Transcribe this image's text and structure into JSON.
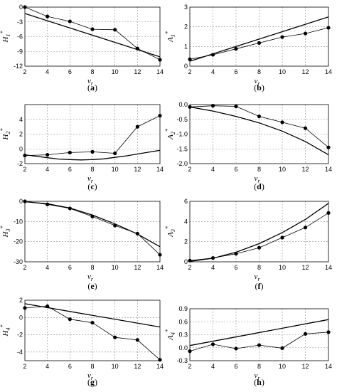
{
  "figure": {
    "panels": [
      {
        "id": "a",
        "letter": "a",
        "ylabel_sym": "H",
        "ylabel_sup": "*",
        "ylabel_sub": "1",
        "xlabel_sym": "v",
        "xlabel_sub": "r"
      },
      {
        "id": "b",
        "letter": "b",
        "ylabel_sym": "A",
        "ylabel_sup": "*",
        "ylabel_sub": "1",
        "xlabel_sym": "v",
        "xlabel_sub": "r"
      },
      {
        "id": "c",
        "letter": "c",
        "ylabel_sym": "H",
        "ylabel_sup": "*",
        "ylabel_sub": "2",
        "xlabel_sym": "v",
        "xlabel_sub": "r"
      },
      {
        "id": "d",
        "letter": "d",
        "ylabel_sym": "A",
        "ylabel_sup": "*",
        "ylabel_sub": "2",
        "xlabel_sym": "v",
        "xlabel_sub": "r"
      },
      {
        "id": "e",
        "letter": "e",
        "ylabel_sym": "H",
        "ylabel_sup": "*",
        "ylabel_sub": "3",
        "xlabel_sym": "v",
        "xlabel_sub": "r"
      },
      {
        "id": "f",
        "letter": "f",
        "ylabel_sym": "A",
        "ylabel_sup": "*",
        "ylabel_sub": "3",
        "xlabel_sym": "v",
        "xlabel_sub": "r"
      },
      {
        "id": "g",
        "letter": "g",
        "ylabel_sym": "H",
        "ylabel_sup": "*",
        "ylabel_sub": "4",
        "xlabel_sym": "v",
        "xlabel_sub": "r"
      },
      {
        "id": "h",
        "letter": "h",
        "ylabel_sym": "A",
        "ylabel_sup": "*",
        "ylabel_sub": "4",
        "xlabel_sym": "v",
        "xlabel_sub": "r"
      }
    ]
  },
  "chart_data": [
    {
      "id": "a",
      "type": "line",
      "xlim": [
        2,
        14
      ],
      "xticks": [
        2,
        4,
        6,
        8,
        10,
        12,
        14
      ],
      "ylim": [
        -12,
        0
      ],
      "yticks": [
        0,
        -3,
        -6,
        -9,
        -12
      ],
      "grid": true,
      "series": [
        {
          "kind": "measured",
          "x": [
            2,
            4,
            6,
            8,
            10,
            12,
            14
          ],
          "y": [
            0,
            -1.9,
            -2.9,
            -4.5,
            -4.6,
            -8.4,
            -10.7
          ]
        },
        {
          "kind": "fitted",
          "x": [
            2,
            14
          ],
          "y": [
            -1.3,
            -10.1
          ]
        }
      ]
    },
    {
      "id": "b",
      "type": "line",
      "xlim": [
        2,
        14
      ],
      "xticks": [
        2,
        4,
        6,
        8,
        10,
        12,
        14
      ],
      "ylim": [
        0,
        3
      ],
      "yticks": [
        0,
        1,
        2,
        3
      ],
      "grid": true,
      "series": [
        {
          "kind": "measured",
          "x": [
            2,
            4,
            6,
            8,
            10,
            12,
            14
          ],
          "y": [
            0.35,
            0.58,
            0.88,
            1.18,
            1.48,
            1.66,
            1.95
          ]
        },
        {
          "kind": "fitted",
          "x": [
            2,
            14
          ],
          "y": [
            0.25,
            2.5
          ]
        }
      ]
    },
    {
      "id": "c",
      "type": "line",
      "xlim": [
        2,
        14
      ],
      "xticks": [
        2,
        4,
        6,
        8,
        10,
        12,
        14
      ],
      "ylim": [
        -2,
        6
      ],
      "yticks": [
        -2,
        0,
        2,
        4
      ],
      "grid": true,
      "series": [
        {
          "kind": "measured",
          "x": [
            2,
            4,
            6,
            8,
            10,
            12,
            14
          ],
          "y": [
            -0.9,
            -0.8,
            -0.5,
            -0.4,
            -0.6,
            3.0,
            4.5
          ]
        },
        {
          "kind": "fitted",
          "x": [
            2,
            3,
            4,
            5,
            6,
            7,
            8,
            9,
            10,
            11,
            12,
            13,
            14
          ],
          "y": [
            -0.8,
            -1.0,
            -1.2,
            -1.38,
            -1.45,
            -1.5,
            -1.45,
            -1.35,
            -1.15,
            -0.95,
            -0.7,
            -0.45,
            -0.2
          ]
        }
      ]
    },
    {
      "id": "d",
      "type": "line",
      "xlim": [
        2,
        14
      ],
      "xticks": [
        2,
        4,
        6,
        8,
        10,
        12,
        14
      ],
      "ylim": [
        -2,
        0
      ],
      "yticks": [
        0,
        -0.5,
        -1.0,
        -1.5,
        -2.0
      ],
      "ytick_labels": [
        "0.0",
        "-0.5",
        "-1.0",
        "-1.5",
        "-2.0"
      ],
      "grid": true,
      "series": [
        {
          "kind": "measured",
          "x": [
            2,
            4,
            6,
            8,
            10,
            12,
            14
          ],
          "y": [
            -0.08,
            -0.04,
            -0.06,
            -0.4,
            -0.6,
            -0.8,
            -1.45
          ]
        },
        {
          "kind": "fitted",
          "x": [
            2,
            4,
            6,
            8,
            10,
            12,
            14
          ],
          "y": [
            -0.08,
            -0.22,
            -0.4,
            -0.62,
            -0.9,
            -1.25,
            -1.7
          ]
        }
      ]
    },
    {
      "id": "e",
      "type": "line",
      "xlim": [
        2,
        14
      ],
      "xticks": [
        2,
        4,
        6,
        8,
        10,
        12,
        14
      ],
      "ylim": [
        -30,
        0
      ],
      "yticks": [
        0,
        -10,
        -20,
        -30
      ],
      "grid": true,
      "series": [
        {
          "kind": "measured",
          "x": [
            2,
            4,
            6,
            8,
            10,
            12,
            14
          ],
          "y": [
            0,
            -1.5,
            -3.5,
            -7.5,
            -12,
            -16,
            -26.5
          ]
        },
        {
          "kind": "fitted",
          "x": [
            2,
            4,
            6,
            8,
            10,
            12,
            14
          ],
          "y": [
            -0.2,
            -1.2,
            -3.3,
            -6.8,
            -11.2,
            -16.2,
            -22.5
          ]
        }
      ]
    },
    {
      "id": "f",
      "type": "line",
      "xlim": [
        2,
        14
      ],
      "xticks": [
        2,
        4,
        6,
        8,
        10,
        12,
        14
      ],
      "ylim": [
        0,
        6
      ],
      "yticks": [
        0,
        2,
        4,
        6
      ],
      "grid": true,
      "series": [
        {
          "kind": "measured",
          "x": [
            2,
            4,
            6,
            8,
            10,
            12,
            14
          ],
          "y": [
            0.12,
            0.38,
            0.8,
            1.4,
            2.4,
            3.4,
            4.85
          ]
        },
        {
          "kind": "fitted",
          "x": [
            2,
            4,
            6,
            8,
            10,
            12,
            14
          ],
          "y": [
            0.05,
            0.35,
            0.95,
            1.8,
            2.9,
            4.2,
            5.8
          ]
        }
      ]
    },
    {
      "id": "g",
      "type": "line",
      "xlim": [
        2,
        14
      ],
      "xticks": [
        2,
        4,
        6,
        8,
        10,
        12,
        14
      ],
      "ylim": [
        -5,
        2
      ],
      "yticks": [
        2,
        0,
        -2,
        -4
      ],
      "grid": true,
      "series": [
        {
          "kind": "measured",
          "x": [
            2,
            4,
            6,
            8,
            10,
            12,
            14
          ],
          "y": [
            1.1,
            1.3,
            -0.2,
            -0.6,
            -2.3,
            -2.6,
            -4.9
          ]
        },
        {
          "kind": "fitted",
          "x": [
            2,
            14
          ],
          "y": [
            1.6,
            -1.1
          ]
        }
      ]
    },
    {
      "id": "h",
      "type": "line",
      "xlim": [
        2,
        14
      ],
      "xticks": [
        2,
        4,
        6,
        8,
        10,
        12,
        14
      ],
      "ylim": [
        -0.3,
        0.9
      ],
      "yticks": [
        0.9,
        0.6,
        0.3,
        0.0,
        -0.3
      ],
      "ytick_labels": [
        "0.9",
        "0.6",
        "0.3",
        "0.0",
        "-0.3"
      ],
      "grid": true,
      "series": [
        {
          "kind": "measured",
          "x": [
            2,
            4,
            6,
            8,
            10,
            12,
            14
          ],
          "y": [
            -0.08,
            0.08,
            -0.02,
            0.06,
            -0.01,
            0.32,
            0.36
          ]
        },
        {
          "kind": "fitted",
          "x": [
            2,
            14
          ],
          "y": [
            0.05,
            0.65
          ]
        }
      ]
    }
  ]
}
